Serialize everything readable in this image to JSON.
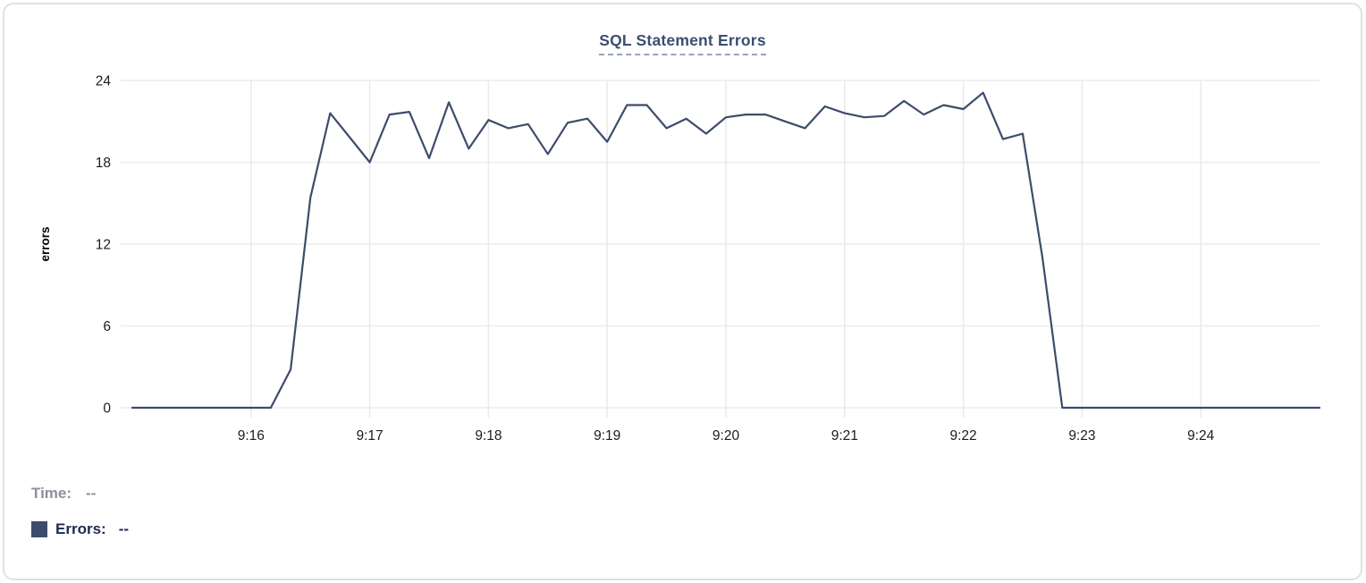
{
  "card": {
    "title": "SQL Statement Errors"
  },
  "colors": {
    "line": "#3d4c6a",
    "title": "#3b4f72",
    "title_underline": "#97a3bf",
    "grid": "#ebebed",
    "tick_label": "#1c1c1e",
    "axis_label": "#000000",
    "legend_time": "#8b909a",
    "legend_errors": "#1d2b50",
    "swatch": "#3d4c6a",
    "card_border": "#dfe1e6"
  },
  "legend": {
    "time_label": "Time:",
    "time_value": "--",
    "errors_label": "Errors:",
    "errors_value": "--"
  },
  "chart_data": {
    "type": "line",
    "title": "SQL Statement Errors",
    "xlabel": "",
    "ylabel": "errors",
    "ylim": [
      0,
      24
    ],
    "yticks": [
      0,
      6,
      12,
      18,
      24
    ],
    "xticks": [
      "9:16",
      "9:17",
      "9:18",
      "9:19",
      "9:20",
      "9:21",
      "9:22",
      "9:23",
      "9:24"
    ],
    "x_range": [
      "9:15:00",
      "9:25:00"
    ],
    "interval_seconds": 10,
    "grid": true,
    "legend_position": "bottom-left",
    "series": [
      {
        "name": "Errors",
        "x": [
          "9:15:00",
          "9:15:10",
          "9:15:20",
          "9:15:30",
          "9:15:40",
          "9:15:50",
          "9:16:00",
          "9:16:10",
          "9:16:20",
          "9:16:30",
          "9:16:40",
          "9:16:50",
          "9:17:00",
          "9:17:10",
          "9:17:20",
          "9:17:30",
          "9:17:40",
          "9:17:50",
          "9:18:00",
          "9:18:10",
          "9:18:20",
          "9:18:30",
          "9:18:40",
          "9:18:50",
          "9:19:00",
          "9:19:10",
          "9:19:20",
          "9:19:30",
          "9:19:40",
          "9:19:50",
          "9:20:00",
          "9:20:10",
          "9:20:20",
          "9:20:30",
          "9:20:40",
          "9:20:50",
          "9:21:00",
          "9:21:10",
          "9:21:20",
          "9:21:30",
          "9:21:40",
          "9:21:50",
          "9:22:00",
          "9:22:10",
          "9:22:20",
          "9:22:30",
          "9:22:40",
          "9:22:50",
          "9:23:00",
          "9:23:10",
          "9:23:20",
          "9:23:30",
          "9:23:40",
          "9:23:50",
          "9:24:00",
          "9:24:10",
          "9:24:20",
          "9:24:30",
          "9:24:40",
          "9:24:50",
          "9:25:00"
        ],
        "values": [
          0,
          0,
          0,
          0,
          0,
          0,
          0,
          0,
          2.8,
          15.4,
          21.6,
          19.8,
          18.0,
          21.5,
          21.7,
          18.3,
          22.4,
          19.0,
          21.1,
          20.5,
          20.8,
          18.6,
          20.9,
          21.2,
          19.5,
          22.2,
          22.2,
          20.5,
          21.2,
          20.1,
          21.3,
          21.5,
          21.5,
          21.0,
          20.5,
          22.1,
          21.6,
          21.3,
          21.4,
          22.5,
          21.5,
          22.2,
          21.9,
          23.1,
          19.7,
          20.1,
          11.0,
          0,
          0,
          0,
          0,
          0,
          0,
          0,
          0,
          0,
          0,
          0,
          0,
          0,
          0
        ]
      }
    ]
  }
}
